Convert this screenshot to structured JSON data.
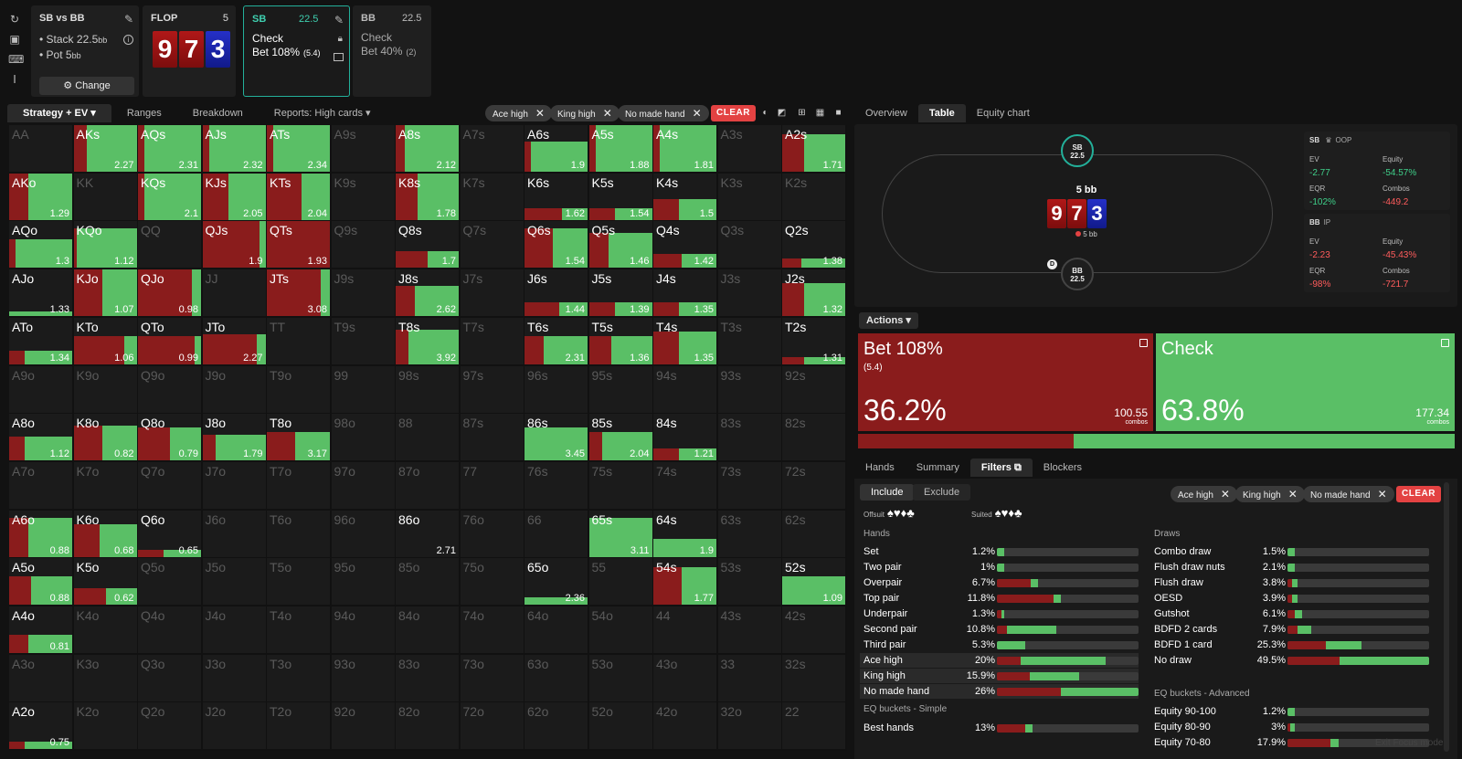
{
  "spot": {
    "title": "SB vs BB",
    "stack_label": "Stack 22.5",
    "stack_unit": "bb",
    "pot_label": "Pot 5",
    "pot_unit": "bb",
    "change_label": "Change"
  },
  "flop": {
    "title": "FLOP",
    "count": "5",
    "cards": [
      "9",
      "7",
      "3"
    ]
  },
  "sb_node": {
    "player": "SB",
    "stack": "22.5",
    "action1": "Check",
    "action2": "Bet 108%",
    "action2_size": "(5.4)"
  },
  "bb_node": {
    "player": "BB",
    "stack": "22.5",
    "action1": "Check",
    "action2": "Bet 40%",
    "action2_size": "(2)"
  },
  "left_tabs": [
    "Strategy + EV",
    "Ranges",
    "Breakdown",
    "Reports: High cards"
  ],
  "filter_chips": [
    "Ace high",
    "King high",
    "No made hand"
  ],
  "clear_label": "CLEAR",
  "grid": [
    [
      [
        "AA",
        0,
        0,
        ""
      ],
      [
        "AKs",
        0.2,
        1,
        "2.27"
      ],
      [
        "AQs",
        0.1,
        1,
        "2.31"
      ],
      [
        "AJs",
        0.1,
        1,
        "2.32"
      ],
      [
        "ATs",
        0.1,
        1,
        "2.34"
      ],
      [
        "A9s",
        0,
        0,
        ""
      ],
      [
        "A8s",
        0.15,
        1,
        "2.12"
      ],
      [
        "A7s",
        0,
        0,
        ""
      ],
      [
        "A6s",
        0.1,
        0.65,
        "1.9"
      ],
      [
        "A5s",
        0.1,
        1,
        "1.88"
      ],
      [
        "A4s",
        0.1,
        1,
        "1.81"
      ],
      [
        "A3s",
        0,
        0,
        ""
      ],
      [
        "A2s",
        0.35,
        0.8,
        "1.71"
      ]
    ],
    [
      [
        "AKo",
        0.3,
        1,
        "1.29"
      ],
      [
        "KK",
        0,
        0,
        ""
      ],
      [
        "KQs",
        0.1,
        1,
        "2.1"
      ],
      [
        "KJs",
        0.4,
        1,
        "2.05"
      ],
      [
        "KTs",
        0.55,
        1,
        "2.04"
      ],
      [
        "K9s",
        0,
        0,
        ""
      ],
      [
        "K8s",
        0.35,
        1,
        "1.78"
      ],
      [
        "K7s",
        0,
        0,
        ""
      ],
      [
        "K6s",
        0.6,
        0.25,
        "1.62"
      ],
      [
        "K5s",
        0.4,
        0.25,
        "1.54"
      ],
      [
        "K4s",
        0.4,
        0.45,
        "1.5"
      ],
      [
        "K3s",
        0,
        0,
        ""
      ],
      [
        "K2s",
        0,
        0,
        ""
      ]
    ],
    [
      [
        "AQo",
        0.1,
        0.6,
        "1.3"
      ],
      [
        "KQo",
        0.05,
        0.85,
        "1.12"
      ],
      [
        "QQ",
        0,
        0,
        ""
      ],
      [
        "QJs",
        0.9,
        1,
        "1.9"
      ],
      [
        "QTs",
        1,
        1,
        "1.93"
      ],
      [
        "Q9s",
        0,
        0,
        ""
      ],
      [
        "Q8s",
        0.5,
        0.35,
        "1.7"
      ],
      [
        "Q7s",
        0,
        0,
        ""
      ],
      [
        "Q6s",
        0.45,
        0.85,
        "1.54"
      ],
      [
        "Q5s",
        0.3,
        0.75,
        "1.46"
      ],
      [
        "Q4s",
        0.45,
        0.3,
        "1.42"
      ],
      [
        "Q3s",
        0,
        0,
        ""
      ],
      [
        "Q2s",
        0.3,
        0.2,
        "1.38"
      ]
    ],
    [
      [
        "AJo",
        0,
        0.1,
        "1.33"
      ],
      [
        "KJo",
        0.45,
        1,
        "1.07"
      ],
      [
        "QJo",
        0.85,
        1,
        "0.98"
      ],
      [
        "JJ",
        0,
        0,
        ""
      ],
      [
        "JTs",
        0.85,
        1,
        "3.08"
      ],
      [
        "J9s",
        0,
        0,
        ""
      ],
      [
        "J8s",
        0.3,
        0.65,
        "2.62"
      ],
      [
        "J7s",
        0,
        0,
        ""
      ],
      [
        "J6s",
        0.55,
        0.3,
        "1.44"
      ],
      [
        "J5s",
        0.4,
        0.3,
        "1.39"
      ],
      [
        "J4s",
        0.4,
        0.3,
        "1.35"
      ],
      [
        "J3s",
        0,
        0,
        ""
      ],
      [
        "J2s",
        0.35,
        0.7,
        "1.32"
      ]
    ],
    [
      [
        "ATo",
        0.25,
        0.3,
        "1.34"
      ],
      [
        "KTo",
        0.8,
        0.6,
        "1.06"
      ],
      [
        "QTo",
        0.9,
        0.6,
        "0.99"
      ],
      [
        "JTo",
        0.85,
        0.65,
        "2.27"
      ],
      [
        "TT",
        0,
        0,
        ""
      ],
      [
        "T9s",
        0,
        0,
        ""
      ],
      [
        "T8s",
        0.2,
        0.75,
        "3.92"
      ],
      [
        "T7s",
        0,
        0,
        ""
      ],
      [
        "T6s",
        0.3,
        0.6,
        "2.31"
      ],
      [
        "T5s",
        0.35,
        0.6,
        "1.36"
      ],
      [
        "T4s",
        0.4,
        0.7,
        "1.35"
      ],
      [
        "T3s",
        0,
        0,
        ""
      ],
      [
        "T2s",
        0.35,
        0.15,
        "1.31"
      ]
    ],
    [
      [
        "A9o",
        0,
        0,
        ""
      ],
      [
        "K9o",
        0,
        0,
        ""
      ],
      [
        "Q9o",
        0,
        0,
        ""
      ],
      [
        "J9o",
        0,
        0,
        ""
      ],
      [
        "T9o",
        0,
        0,
        ""
      ],
      [
        "99",
        0,
        0,
        ""
      ],
      [
        "98s",
        0,
        0,
        ""
      ],
      [
        "97s",
        0,
        0,
        ""
      ],
      [
        "96s",
        0,
        0,
        ""
      ],
      [
        "95s",
        0,
        0,
        ""
      ],
      [
        "94s",
        0,
        0,
        ""
      ],
      [
        "93s",
        0,
        0,
        ""
      ],
      [
        "92s",
        0,
        0,
        ""
      ]
    ],
    [
      [
        "A8o",
        0.25,
        0.5,
        "1.12"
      ],
      [
        "K8o",
        0.45,
        0.75,
        "0.82"
      ],
      [
        "Q8o",
        0.5,
        0.7,
        "0.79"
      ],
      [
        "J8o",
        0.2,
        0.55,
        "1.79"
      ],
      [
        "T8o",
        0.45,
        0.6,
        "3.17"
      ],
      [
        "98o",
        0,
        0,
        ""
      ],
      [
        "88",
        0,
        0,
        ""
      ],
      [
        "87s",
        0,
        0,
        ""
      ],
      [
        "86s",
        0,
        0.7,
        "3.45"
      ],
      [
        "85s",
        0.2,
        0.6,
        "2.04"
      ],
      [
        "84s",
        0.4,
        0.25,
        "1.21"
      ],
      [
        "83s",
        0,
        0,
        ""
      ],
      [
        "82s",
        0,
        0,
        ""
      ]
    ],
    [
      [
        "A7o",
        0,
        0,
        ""
      ],
      [
        "K7o",
        0,
        0,
        ""
      ],
      [
        "Q7o",
        0,
        0,
        ""
      ],
      [
        "J7o",
        0,
        0,
        ""
      ],
      [
        "T7o",
        0,
        0,
        ""
      ],
      [
        "97o",
        0,
        0,
        ""
      ],
      [
        "87o",
        0,
        0,
        ""
      ],
      [
        "77",
        0,
        0,
        ""
      ],
      [
        "76s",
        0,
        0,
        ""
      ],
      [
        "75s",
        0,
        0,
        ""
      ],
      [
        "74s",
        0,
        0,
        ""
      ],
      [
        "73s",
        0,
        0,
        ""
      ],
      [
        "72s",
        0,
        0,
        ""
      ]
    ],
    [
      [
        "A6o",
        0.3,
        0.85,
        "0.88"
      ],
      [
        "K6o",
        0.4,
        0.7,
        "0.68"
      ],
      [
        "Q6o",
        0.4,
        0.15,
        "0.65"
      ],
      [
        "J6o",
        0,
        0,
        ""
      ],
      [
        "T6o",
        0,
        0,
        ""
      ],
      [
        "96o",
        0,
        0,
        ""
      ],
      [
        "86o",
        0,
        0,
        "2.71"
      ],
      [
        "76o",
        0,
        0,
        ""
      ],
      [
        "66",
        0,
        0,
        ""
      ],
      [
        "65s",
        0,
        0.85,
        "3.11"
      ],
      [
        "64s",
        0,
        0.4,
        "1.9"
      ],
      [
        "63s",
        0,
        0,
        ""
      ],
      [
        "62s",
        0,
        0,
        ""
      ]
    ],
    [
      [
        "A5o",
        0.35,
        0.6,
        "0.88"
      ],
      [
        "K5o",
        0.5,
        0.35,
        "0.62"
      ],
      [
        "Q5o",
        0,
        0,
        ""
      ],
      [
        "J5o",
        0,
        0,
        ""
      ],
      [
        "T5o",
        0,
        0,
        ""
      ],
      [
        "95o",
        0,
        0,
        ""
      ],
      [
        "85o",
        0,
        0,
        ""
      ],
      [
        "75o",
        0,
        0,
        ""
      ],
      [
        "65o",
        0,
        0.15,
        "2.36"
      ],
      [
        "55",
        0,
        0,
        ""
      ],
      [
        "54s",
        0.45,
        0.8,
        "1.77"
      ],
      [
        "53s",
        0,
        0,
        ""
      ],
      [
        "52s",
        0,
        0.6,
        "1.09"
      ]
    ],
    [
      [
        "A4o",
        0.3,
        0.4,
        "0.81"
      ],
      [
        "K4o",
        0,
        0,
        ""
      ],
      [
        "Q4o",
        0,
        0,
        ""
      ],
      [
        "J4o",
        0,
        0,
        ""
      ],
      [
        "T4o",
        0,
        0,
        ""
      ],
      [
        "94o",
        0,
        0,
        ""
      ],
      [
        "84o",
        0,
        0,
        ""
      ],
      [
        "74o",
        0,
        0,
        ""
      ],
      [
        "64o",
        0,
        0,
        ""
      ],
      [
        "54o",
        0,
        0,
        ""
      ],
      [
        "44",
        0,
        0,
        ""
      ],
      [
        "43s",
        0,
        0,
        ""
      ],
      [
        "42s",
        0,
        0,
        ""
      ]
    ],
    [
      [
        "A3o",
        0,
        0,
        ""
      ],
      [
        "K3o",
        0,
        0,
        ""
      ],
      [
        "Q3o",
        0,
        0,
        ""
      ],
      [
        "J3o",
        0,
        0,
        ""
      ],
      [
        "T3o",
        0,
        0,
        ""
      ],
      [
        "93o",
        0,
        0,
        ""
      ],
      [
        "83o",
        0,
        0,
        ""
      ],
      [
        "73o",
        0,
        0,
        ""
      ],
      [
        "63o",
        0,
        0,
        ""
      ],
      [
        "53o",
        0,
        0,
        ""
      ],
      [
        "43o",
        0,
        0,
        ""
      ],
      [
        "33",
        0,
        0,
        ""
      ],
      [
        "32s",
        0,
        0,
        ""
      ]
    ],
    [
      [
        "A2o",
        0.25,
        0.15,
        "0.75"
      ],
      [
        "K2o",
        0,
        0,
        ""
      ],
      [
        "Q2o",
        0,
        0,
        ""
      ],
      [
        "J2o",
        0,
        0,
        ""
      ],
      [
        "T2o",
        0,
        0,
        ""
      ],
      [
        "92o",
        0,
        0,
        ""
      ],
      [
        "82o",
        0,
        0,
        ""
      ],
      [
        "72o",
        0,
        0,
        ""
      ],
      [
        "62o",
        0,
        0,
        ""
      ],
      [
        "52o",
        0,
        0,
        ""
      ],
      [
        "42o",
        0,
        0,
        ""
      ],
      [
        "32o",
        0,
        0,
        ""
      ],
      [
        "22",
        0,
        0,
        ""
      ]
    ]
  ],
  "right_tabs": [
    "Overview",
    "Table",
    "Equity chart"
  ],
  "table": {
    "sb_seat": "SB",
    "sb_stack": "22.5",
    "bb_seat": "BB",
    "bb_stack": "22.5",
    "pot": "5 bb",
    "pot_sub": "5 bb",
    "dealer": "D",
    "sb_stats": {
      "title": "SB",
      "pos": "OOP",
      "ev_label": "EV",
      "ev": "-2.77",
      "eq_label": "Equity",
      "eq": "-54.57%",
      "eqr_label": "EQR",
      "eqr": "-102%",
      "combos_label": "Combos",
      "combos": "-449.2"
    },
    "bb_stats": {
      "title": "BB",
      "pos": "IP",
      "ev_label": "EV",
      "ev": "-2.23",
      "eq_label": "Equity",
      "eq": "-45.43%",
      "eqr_label": "EQR",
      "eqr": "-98%",
      "combos_label": "Combos",
      "combos": "-721.7"
    }
  },
  "actions": {
    "dropdown": "Actions",
    "bet": {
      "name": "Bet 108%",
      "size": "(5.4)",
      "pct": "36.2%",
      "combos": "100.55",
      "combos_label": "combos",
      "frac": 0.362
    },
    "check": {
      "name": "Check",
      "pct": "63.8%",
      "combos": "177.34",
      "combos_label": "combos"
    }
  },
  "bottom_tabs": [
    "Hands",
    "Summary",
    "Filters",
    "Blockers"
  ],
  "filters": {
    "include": "Include",
    "exclude": "Exclude",
    "offsuit": "Offsuit",
    "suited": "Suited",
    "offsuit_glyphs": "♠♥♦♣",
    "suited_glyphs": "♠♥♦♣",
    "hands_title": "Hands",
    "draws_title": "Draws",
    "eq_simple_title": "EQ buckets - Simple",
    "eq_adv_title": "EQ buckets - Advanced",
    "hands": [
      [
        "Set",
        "1.2%",
        0,
        0.05,
        false
      ],
      [
        "Two pair",
        "1%",
        0,
        0.05,
        false
      ],
      [
        "Overpair",
        "6.7%",
        0.24,
        0.05,
        false
      ],
      [
        "Top pair",
        "11.8%",
        0.4,
        0.05,
        false
      ],
      [
        "Underpair",
        "1.3%",
        0.03,
        0.02,
        false
      ],
      [
        "Second pair",
        "10.8%",
        0.07,
        0.35,
        false
      ],
      [
        "Third pair",
        "5.3%",
        0,
        0.2,
        false
      ],
      [
        "Ace high",
        "20%",
        0.17,
        0.6,
        true
      ],
      [
        "King high",
        "15.9%",
        0.23,
        0.35,
        true
      ],
      [
        "No made hand",
        "26%",
        0.45,
        0.55,
        true
      ]
    ],
    "eq_simple": [
      [
        "Best hands",
        "13%",
        0.2,
        0.05,
        false
      ]
    ],
    "draws": [
      [
        "Combo draw",
        "1.5%",
        0,
        0.05,
        false
      ],
      [
        "Flush draw nuts",
        "2.1%",
        0,
        0.05,
        false
      ],
      [
        "Flush draw",
        "3.8%",
        0.03,
        0.04,
        false
      ],
      [
        "OESD",
        "3.9%",
        0.03,
        0.04,
        false
      ],
      [
        "Gutshot",
        "6.1%",
        0.05,
        0.05,
        false
      ],
      [
        "BDFD 2 cards",
        "7.9%",
        0.07,
        0.1,
        false
      ],
      [
        "BDFD 1 card",
        "25.3%",
        0.27,
        0.25,
        false
      ],
      [
        "No draw",
        "49.5%",
        0.37,
        0.63,
        false
      ]
    ],
    "eq_adv": [
      [
        "Equity 90-100",
        "1.2%",
        0,
        0.05,
        false
      ],
      [
        "Equity 80-90",
        "3%",
        0.02,
        0.03,
        false
      ],
      [
        "Equity 70-80",
        "17.9%",
        0.3,
        0.06,
        false
      ]
    ]
  },
  "exit_focus": "Exit Focus mode"
}
